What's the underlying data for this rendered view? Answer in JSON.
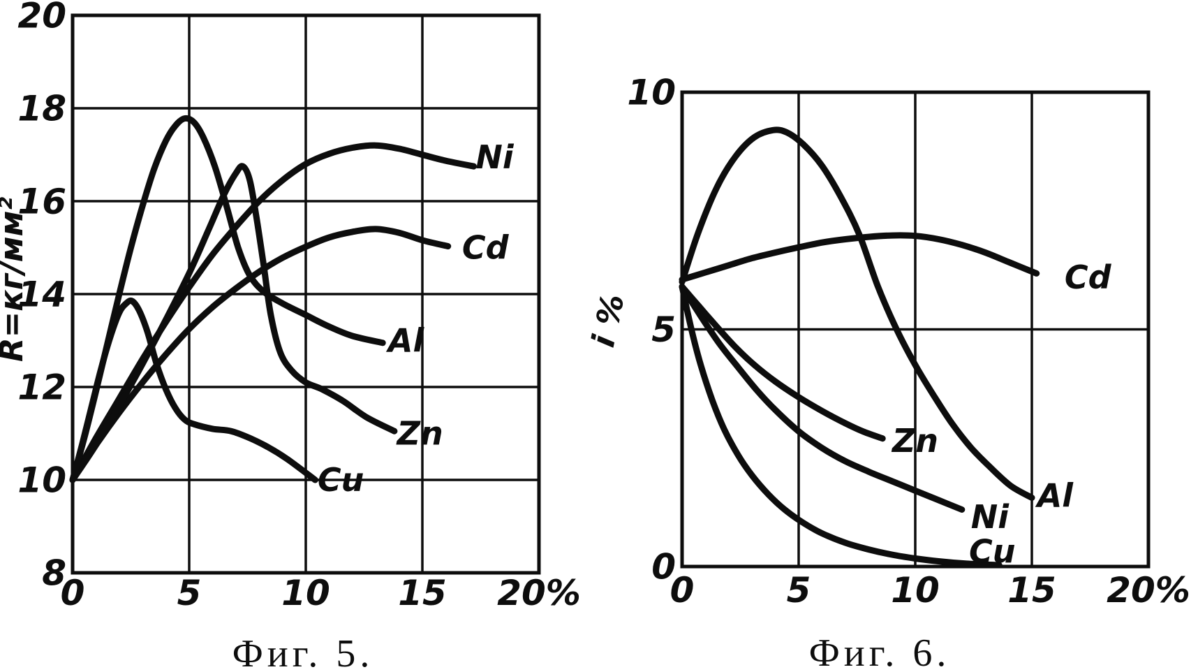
{
  "page": {
    "background": "#ffffff",
    "ink": "#0d0d0d"
  },
  "chart_data": [
    {
      "id": "fig5",
      "type": "line",
      "caption": "Фиг. 5.",
      "ylabel": "R=кг/мм²",
      "x_unit": "%",
      "xlim": [
        0,
        20
      ],
      "ylim": [
        8,
        20
      ],
      "grid": true,
      "legend_position": "curve-end-labels",
      "xticks": [
        {
          "v": 0,
          "label": "0"
        },
        {
          "v": 5,
          "label": "5"
        },
        {
          "v": 10,
          "label": "10"
        },
        {
          "v": 15,
          "label": "15"
        },
        {
          "v": 20,
          "label": "20%"
        }
      ],
      "yticks": [
        {
          "v": 20,
          "label": "20"
        },
        {
          "v": 18,
          "label": "18"
        },
        {
          "v": 16,
          "label": "16"
        },
        {
          "v": 14,
          "label": "14"
        },
        {
          "v": 12,
          "label": "12"
        },
        {
          "v": 10,
          "label": "10"
        },
        {
          "v": 8,
          "label": "8"
        }
      ],
      "series": [
        {
          "name": "Ni",
          "label_at": [
            18.1,
            16.95
          ],
          "points": [
            [
              0,
              10
            ],
            [
              1,
              10.9
            ],
            [
              2,
              11.75
            ],
            [
              3,
              12.6
            ],
            [
              4,
              13.4
            ],
            [
              5,
              14.15
            ],
            [
              6,
              14.85
            ],
            [
              7,
              15.45
            ],
            [
              8,
              16.0
            ],
            [
              9,
              16.45
            ],
            [
              10,
              16.8
            ],
            [
              11,
              17.02
            ],
            [
              12,
              17.15
            ],
            [
              13,
              17.2
            ],
            [
              14,
              17.13
            ],
            [
              15,
              17.0
            ],
            [
              16,
              16.87
            ],
            [
              17.2,
              16.75
            ]
          ]
        },
        {
          "name": "Cd",
          "label_at": [
            17.7,
            15.0
          ],
          "points": [
            [
              0,
              10
            ],
            [
              1,
              10.75
            ],
            [
              2,
              11.45
            ],
            [
              3,
              12.1
            ],
            [
              4,
              12.7
            ],
            [
              5,
              13.25
            ],
            [
              6,
              13.72
            ],
            [
              7,
              14.12
            ],
            [
              8,
              14.48
            ],
            [
              9,
              14.78
            ],
            [
              10,
              15.02
            ],
            [
              11,
              15.22
            ],
            [
              12,
              15.34
            ],
            [
              13,
              15.4
            ],
            [
              14,
              15.32
            ],
            [
              15,
              15.16
            ],
            [
              16.1,
              15.03
            ]
          ]
        },
        {
          "name": "Al",
          "label_at": [
            14.3,
            13.0
          ],
          "points": [
            [
              0,
              10
            ],
            [
              0.5,
              10.9
            ],
            [
              1,
              11.9
            ],
            [
              1.5,
              12.95
            ],
            [
              2,
              14.0
            ],
            [
              2.5,
              15.0
            ],
            [
              3,
              15.9
            ],
            [
              3.5,
              16.7
            ],
            [
              4,
              17.3
            ],
            [
              4.4,
              17.62
            ],
            [
              4.8,
              17.78
            ],
            [
              5.2,
              17.7
            ],
            [
              5.6,
              17.38
            ],
            [
              6.1,
              16.75
            ],
            [
              6.6,
              15.9
            ],
            [
              7.1,
              15.0
            ],
            [
              7.6,
              14.4
            ],
            [
              8.2,
              14.05
            ],
            [
              9,
              13.8
            ],
            [
              10,
              13.55
            ],
            [
              11,
              13.3
            ],
            [
              12,
              13.1
            ],
            [
              13.3,
              12.95
            ]
          ]
        },
        {
          "name": "Zn",
          "label_at": [
            14.9,
            11.0
          ],
          "points": [
            [
              0,
              10
            ],
            [
              1,
              10.75
            ],
            [
              2,
              11.6
            ],
            [
              3,
              12.5
            ],
            [
              4,
              13.45
            ],
            [
              5,
              14.45
            ],
            [
              5.8,
              15.35
            ],
            [
              6.5,
              16.15
            ],
            [
              7,
              16.6
            ],
            [
              7.3,
              16.75
            ],
            [
              7.6,
              16.45
            ],
            [
              7.9,
              15.6
            ],
            [
              8.2,
              14.6
            ],
            [
              8.5,
              13.55
            ],
            [
              8.9,
              12.75
            ],
            [
              9.4,
              12.35
            ],
            [
              10,
              12.1
            ],
            [
              10.7,
              11.95
            ],
            [
              11.6,
              11.7
            ],
            [
              12.6,
              11.35
            ],
            [
              13.8,
              11.05
            ]
          ]
        },
        {
          "name": "Cu",
          "label_at": [
            11.5,
            10.0
          ],
          "points": [
            [
              0,
              10
            ],
            [
              0.4,
              10.75
            ],
            [
              0.8,
              11.55
            ],
            [
              1.2,
              12.35
            ],
            [
              1.6,
              13.05
            ],
            [
              2,
              13.6
            ],
            [
              2.3,
              13.8
            ],
            [
              2.55,
              13.85
            ],
            [
              2.85,
              13.65
            ],
            [
              3.2,
              13.2
            ],
            [
              3.6,
              12.5
            ],
            [
              4,
              11.95
            ],
            [
              4.4,
              11.55
            ],
            [
              4.8,
              11.3
            ],
            [
              5.2,
              11.2
            ],
            [
              6,
              11.1
            ],
            [
              6.8,
              11.05
            ],
            [
              7.6,
              10.9
            ],
            [
              8.4,
              10.7
            ],
            [
              9.2,
              10.45
            ],
            [
              10.4,
              10.0
            ]
          ]
        }
      ]
    },
    {
      "id": "fig6",
      "type": "line",
      "caption": "Фиг. 6.",
      "ylabel": "i %",
      "x_unit": "%",
      "xlim": [
        0,
        20
      ],
      "ylim": [
        0,
        10
      ],
      "grid": true,
      "legend_position": "curve-end-labels",
      "xticks": [
        {
          "v": 0,
          "label": "0"
        },
        {
          "v": 5,
          "label": "5"
        },
        {
          "v": 10,
          "label": "10"
        },
        {
          "v": 15,
          "label": "15"
        },
        {
          "v": 20,
          "label": "20%"
        }
      ],
      "yticks": [
        {
          "v": 10,
          "label": "10"
        },
        {
          "v": 5,
          "label": "5"
        },
        {
          "v": 0,
          "label": "0"
        }
      ],
      "series": [
        {
          "name": "Cd",
          "label_at": [
            17.4,
            6.1
          ],
          "points": [
            [
              0,
              6.05
            ],
            [
              1,
              6.2
            ],
            [
              2,
              6.35
            ],
            [
              3,
              6.5
            ],
            [
              4,
              6.62
            ],
            [
              5,
              6.73
            ],
            [
              6,
              6.83
            ],
            [
              7,
              6.9
            ],
            [
              8,
              6.95
            ],
            [
              9,
              6.98
            ],
            [
              10,
              6.97
            ],
            [
              11,
              6.9
            ],
            [
              12,
              6.78
            ],
            [
              13,
              6.62
            ],
            [
              14,
              6.42
            ],
            [
              15.2,
              6.18
            ]
          ]
        },
        {
          "name": "Al",
          "label_at": [
            16.0,
            1.5
          ],
          "points": [
            [
              0,
              6.0
            ],
            [
              0.7,
              7.05
            ],
            [
              1.5,
              8.0
            ],
            [
              2.3,
              8.65
            ],
            [
              3.1,
              9.05
            ],
            [
              3.9,
              9.2
            ],
            [
              4.5,
              9.15
            ],
            [
              5.2,
              8.9
            ],
            [
              6,
              8.45
            ],
            [
              6.8,
              7.8
            ],
            [
              7.6,
              7.0
            ],
            [
              8.4,
              5.9
            ],
            [
              9.2,
              5.0
            ],
            [
              10,
              4.25
            ],
            [
              10.8,
              3.6
            ],
            [
              11.6,
              3.0
            ],
            [
              12.4,
              2.5
            ],
            [
              13.2,
              2.1
            ],
            [
              14.1,
              1.7
            ],
            [
              15,
              1.45
            ]
          ]
        },
        {
          "name": "Zn",
          "label_at": [
            10.0,
            2.65
          ],
          "points": [
            [
              0,
              5.9
            ],
            [
              0.7,
              5.5
            ],
            [
              1.5,
              5.05
            ],
            [
              2.3,
              4.62
            ],
            [
              3.1,
              4.25
            ],
            [
              4,
              3.9
            ],
            [
              5,
              3.57
            ],
            [
              6,
              3.28
            ],
            [
              7,
              3.02
            ],
            [
              7.8,
              2.84
            ],
            [
              8.6,
              2.7
            ]
          ]
        },
        {
          "name": "Ni",
          "label_at": [
            13.2,
            1.05
          ],
          "points": [
            [
              0,
              5.9
            ],
            [
              0.8,
              5.28
            ],
            [
              1.6,
              4.7
            ],
            [
              2.4,
              4.2
            ],
            [
              3.2,
              3.72
            ],
            [
              4,
              3.3
            ],
            [
              5,
              2.85
            ],
            [
              6,
              2.5
            ],
            [
              7,
              2.22
            ],
            [
              8,
              2.0
            ],
            [
              9,
              1.8
            ],
            [
              10,
              1.6
            ],
            [
              11,
              1.4
            ],
            [
              12,
              1.2
            ]
          ]
        },
        {
          "name": "Cu",
          "label_at": [
            13.3,
            0.32
          ],
          "points": [
            [
              0,
              5.9
            ],
            [
              0.4,
              5.0
            ],
            [
              0.8,
              4.25
            ],
            [
              1.3,
              3.5
            ],
            [
              1.8,
              2.9
            ],
            [
              2.4,
              2.35
            ],
            [
              3,
              1.92
            ],
            [
              3.7,
              1.52
            ],
            [
              4.4,
              1.2
            ],
            [
              5.2,
              0.92
            ],
            [
              6,
              0.7
            ],
            [
              7,
              0.5
            ],
            [
              8,
              0.36
            ],
            [
              9,
              0.25
            ],
            [
              10,
              0.17
            ],
            [
              11,
              0.11
            ],
            [
              12.2,
              0.06
            ],
            [
              13.6,
              0.03
            ]
          ]
        }
      ]
    }
  ]
}
